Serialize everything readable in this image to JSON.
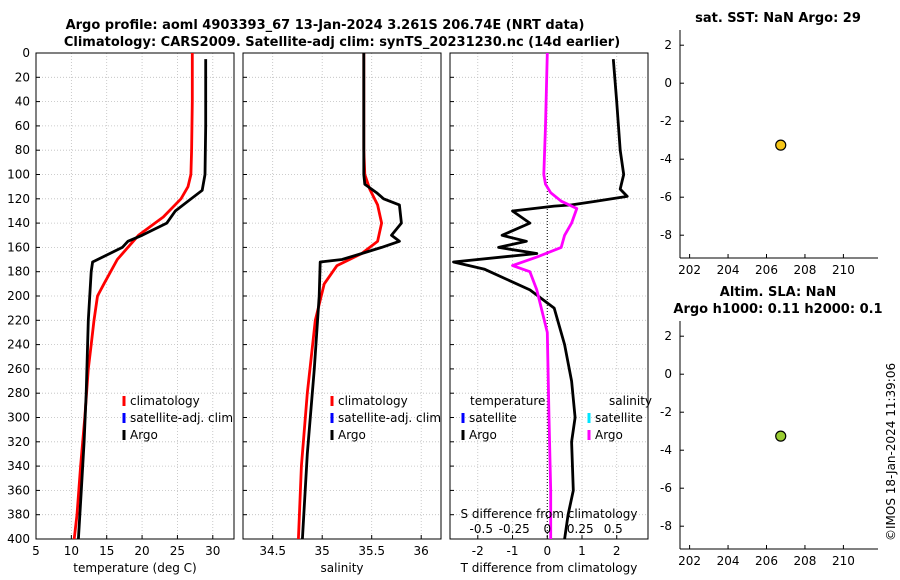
{
  "header": {
    "title_line1": "Argo profile: aoml 4903393_67 13-Jan-2024 3.261S 206.74E (NRT data)",
    "title_line2": "Climatology: CARS2009. Satellite-adj clim: synTS_20231230.nc (14d earlier)"
  },
  "watermark": "©IMOS 18-Jan-2024 11:39:06",
  "colors": {
    "climatology": "#ff0000",
    "satellite": "#0000ff",
    "argo": "#000000",
    "salinity_argo": "#ff00ff",
    "salinity_sat": "#00e5ff",
    "marker_sst": "#f5c518",
    "marker_sla": "#9acd32"
  },
  "chart_data": [
    {
      "id": "temperature",
      "type": "line",
      "xlabel": "temperature (deg C)",
      "ylabel": "",
      "xlim": [
        5,
        33
      ],
      "xticks": [
        5,
        10,
        15,
        20,
        25,
        30
      ],
      "ylim": [
        0,
        400
      ],
      "yticks": [
        0,
        20,
        40,
        60,
        80,
        100,
        120,
        140,
        160,
        180,
        200,
        220,
        240,
        260,
        280,
        300,
        320,
        340,
        360,
        380,
        400
      ],
      "legend": [
        "climatology",
        "satellite-adj. clim",
        "Argo"
      ],
      "series": [
        {
          "name": "climatology",
          "color": "#ff0000",
          "x": [
            27.1,
            27.1,
            27.0,
            26.9,
            26.5,
            25.5,
            23.0,
            19.5,
            16.5,
            14.6,
            13.7,
            13.2,
            12.8,
            12.4,
            11.9,
            11.3,
            10.8,
            10.4
          ],
          "y": [
            0,
            40,
            80,
            100,
            110,
            120,
            135,
            150,
            170,
            190,
            200,
            220,
            240,
            260,
            300,
            340,
            380,
            400
          ]
        },
        {
          "name": "Argo",
          "color": "#000000",
          "x": [
            29.0,
            29.0,
            28.9,
            28.5,
            26.5,
            24.7,
            23.5,
            20.0,
            18.0,
            17.2,
            13.0,
            12.8,
            12.4,
            12.1,
            11.8,
            11.4,
            11.0
          ],
          "y": [
            5,
            60,
            100,
            113,
            122,
            130,
            140,
            150,
            155,
            160,
            172,
            180,
            220,
            280,
            320,
            360,
            400
          ]
        }
      ]
    },
    {
      "id": "salinity",
      "type": "line",
      "xlabel": "salinity",
      "xlim": [
        34.2,
        36.2
      ],
      "xticks": [
        34.5,
        35,
        35.5,
        36
      ],
      "ylim": [
        0,
        400
      ],
      "legend": [
        "climatology",
        "satellite-adj. clim",
        "Argo"
      ],
      "series": [
        {
          "name": "climatology",
          "color": "#ff0000",
          "x": [
            35.42,
            35.42,
            35.43,
            35.48,
            35.56,
            35.6,
            35.56,
            35.4,
            35.15,
            35.02,
            34.93,
            34.85,
            34.79,
            34.76
          ],
          "y": [
            0,
            80,
            100,
            112,
            125,
            140,
            155,
            165,
            175,
            190,
            220,
            280,
            340,
            400
          ]
        },
        {
          "name": "Argo",
          "color": "#000000",
          "x": [
            35.42,
            35.42,
            35.43,
            35.55,
            35.62,
            35.78,
            35.8,
            35.7,
            35.78,
            35.6,
            35.4,
            35.2,
            34.98,
            34.97,
            34.92,
            34.85,
            34.8
          ],
          "y": [
            0,
            100,
            108,
            115,
            120,
            125,
            140,
            150,
            155,
            160,
            165,
            170,
            172,
            200,
            260,
            330,
            400
          ]
        }
      ]
    },
    {
      "id": "difference",
      "type": "line",
      "xlabel": "T difference from climatology",
      "x2label": "S difference from climatology",
      "xlim": [
        -2.8,
        2.9
      ],
      "xticks": [
        -2,
        -1,
        0,
        1,
        2
      ],
      "x2ticks": [
        -0.5,
        -0.25,
        0,
        0.25,
        0.5
      ],
      "x2tick_labels": [
        "-0.5",
        "-0.25",
        "0",
        "0.25",
        "0.5"
      ],
      "ylim": [
        0,
        400
      ],
      "legend_temperature_title": "temperature",
      "legend_salinity_title": "salinity",
      "legend_items": [
        "satellite",
        "Argo"
      ],
      "series": [
        {
          "name": "temperature Argo",
          "color": "#000000",
          "x": [
            1.9,
            2.0,
            2.1,
            2.2,
            2.1,
            2.3,
            1.4,
            0.7,
            0.2,
            -1.0,
            -0.5,
            -1.3,
            -0.6,
            -1.4,
            -0.3,
            -2.7,
            -1.8,
            -0.5,
            0.2,
            0.5,
            0.7,
            0.8,
            0.7,
            0.75,
            0.6,
            0.5
          ],
          "y": [
            5,
            40,
            80,
            100,
            112,
            118,
            122,
            125,
            126,
            130,
            140,
            150,
            155,
            160,
            165,
            172,
            178,
            195,
            210,
            240,
            270,
            300,
            320,
            360,
            380,
            400
          ]
        },
        {
          "name": "salinity Argo",
          "color": "#ff00ff",
          "x": [
            0.0,
            -0.05,
            -0.1,
            -0.05,
            0.1,
            0.4,
            0.85,
            0.7,
            0.5,
            0.4,
            -0.3,
            -1.0,
            -0.5,
            -0.3,
            0.0,
            0.05,
            0.1,
            0.1
          ],
          "y": [
            0,
            60,
            100,
            108,
            115,
            122,
            128,
            140,
            150,
            160,
            168,
            175,
            180,
            195,
            230,
            300,
            360,
            400
          ]
        }
      ]
    },
    {
      "id": "sat_sst",
      "type": "scatter",
      "title": "sat. SST: NaN Argo: 29",
      "xlim": [
        201.5,
        211.8
      ],
      "xticks": [
        202,
        204,
        206,
        208,
        210
      ],
      "ylim": [
        -9.2,
        2.8
      ],
      "yticks": [
        2,
        0,
        -2,
        -4,
        -6,
        -8
      ],
      "points": [
        {
          "x": 206.74,
          "y": -3.26
        }
      ]
    },
    {
      "id": "altim_sla",
      "type": "scatter",
      "title_line1": "Altim. SLA: NaN",
      "title_line2": "Argo h1000: 0.11 h2000: 0.1",
      "xlim": [
        201.5,
        211.8
      ],
      "xticks": [
        202,
        204,
        206,
        208,
        210
      ],
      "ylim": [
        -9.2,
        2.8
      ],
      "yticks": [
        2,
        0,
        -2,
        -4,
        -6,
        -8
      ],
      "points": [
        {
          "x": 206.74,
          "y": -3.26
        }
      ]
    }
  ]
}
